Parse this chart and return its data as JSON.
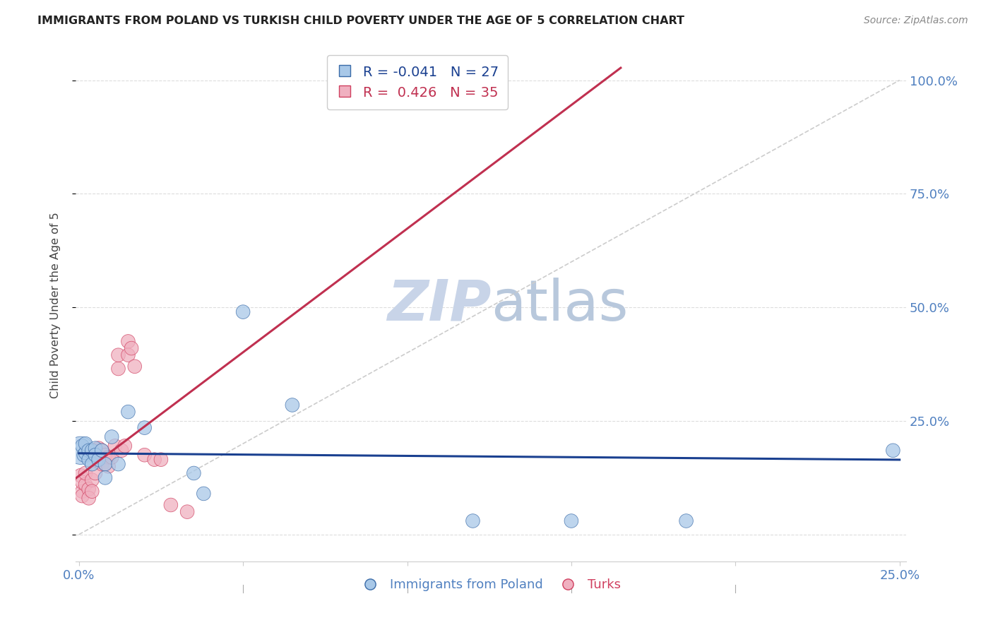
{
  "title": "IMMIGRANTS FROM POLAND VS TURKISH CHILD POVERTY UNDER THE AGE OF 5 CORRELATION CHART",
  "source": "Source: ZipAtlas.com",
  "ylabel_label": "Child Poverty Under the Age of 5",
  "xlim": [
    -0.001,
    0.252
  ],
  "ylim": [
    -0.06,
    1.07
  ],
  "x_tick_positions": [
    0.0,
    0.05,
    0.1,
    0.15,
    0.2,
    0.25
  ],
  "x_tick_labels": [
    "0.0%",
    "",
    "",
    "",
    "",
    "25.0%"
  ],
  "y_tick_positions": [
    0.0,
    0.25,
    0.5,
    0.75,
    1.0
  ],
  "y_tick_labels_right": [
    "",
    "25.0%",
    "50.0%",
    "75.0%",
    "100.0%"
  ],
  "legend_r_blue": "-0.041",
  "legend_n_blue": "27",
  "legend_r_pink": "0.426",
  "legend_n_pink": "35",
  "poland_x": [
    0.0005,
    0.001,
    0.0015,
    0.002,
    0.002,
    0.003,
    0.003,
    0.004,
    0.004,
    0.005,
    0.005,
    0.006,
    0.007,
    0.008,
    0.008,
    0.01,
    0.012,
    0.015,
    0.02,
    0.035,
    0.038,
    0.05,
    0.065,
    0.12,
    0.15,
    0.185,
    0.248
  ],
  "poland_y": [
    0.185,
    0.195,
    0.175,
    0.18,
    0.2,
    0.185,
    0.165,
    0.185,
    0.155,
    0.19,
    0.175,
    0.165,
    0.185,
    0.155,
    0.125,
    0.215,
    0.155,
    0.27,
    0.235,
    0.135,
    0.09,
    0.49,
    0.285,
    0.03,
    0.03,
    0.03,
    0.185
  ],
  "poland_sizes": [
    800,
    200,
    200,
    200,
    200,
    200,
    200,
    200,
    200,
    200,
    200,
    200,
    200,
    200,
    200,
    200,
    200,
    200,
    200,
    200,
    200,
    200,
    200,
    200,
    200,
    200,
    200
  ],
  "turks_x": [
    0.0005,
    0.001,
    0.001,
    0.001,
    0.002,
    0.002,
    0.003,
    0.003,
    0.004,
    0.004,
    0.005,
    0.005,
    0.006,
    0.006,
    0.007,
    0.007,
    0.008,
    0.008,
    0.009,
    0.009,
    0.01,
    0.011,
    0.012,
    0.012,
    0.013,
    0.014,
    0.015,
    0.015,
    0.016,
    0.017,
    0.02,
    0.023,
    0.025,
    0.028,
    0.033
  ],
  "turks_y": [
    0.13,
    0.095,
    0.115,
    0.085,
    0.11,
    0.135,
    0.1,
    0.08,
    0.12,
    0.095,
    0.185,
    0.135,
    0.19,
    0.16,
    0.185,
    0.155,
    0.175,
    0.155,
    0.17,
    0.15,
    0.17,
    0.195,
    0.365,
    0.395,
    0.185,
    0.195,
    0.425,
    0.395,
    0.41,
    0.37,
    0.175,
    0.165,
    0.165,
    0.065,
    0.05
  ],
  "turks_sizes": [
    200,
    200,
    200,
    200,
    200,
    200,
    200,
    200,
    200,
    200,
    200,
    200,
    200,
    200,
    200,
    200,
    200,
    200,
    200,
    200,
    200,
    200,
    200,
    200,
    200,
    200,
    200,
    200,
    200,
    200,
    200,
    200,
    200,
    200,
    200
  ],
  "blue_fill": "#A8C8E8",
  "blue_edge": "#3A6BA8",
  "pink_fill": "#F0B0C0",
  "pink_edge": "#D04060",
  "blue_line_color": "#1A4090",
  "pink_line_color": "#C03050",
  "diagonal_color": "#CCCCCC",
  "watermark_color": "#C8D4E8",
  "title_color": "#222222",
  "ylabel_color": "#444444",
  "tick_color": "#5080C0",
  "source_color": "#888888",
  "grid_color": "#DDDDDD",
  "background_color": "#FFFFFF",
  "legend_edge_color": "#CCCCCC",
  "marker_alpha": 0.75
}
